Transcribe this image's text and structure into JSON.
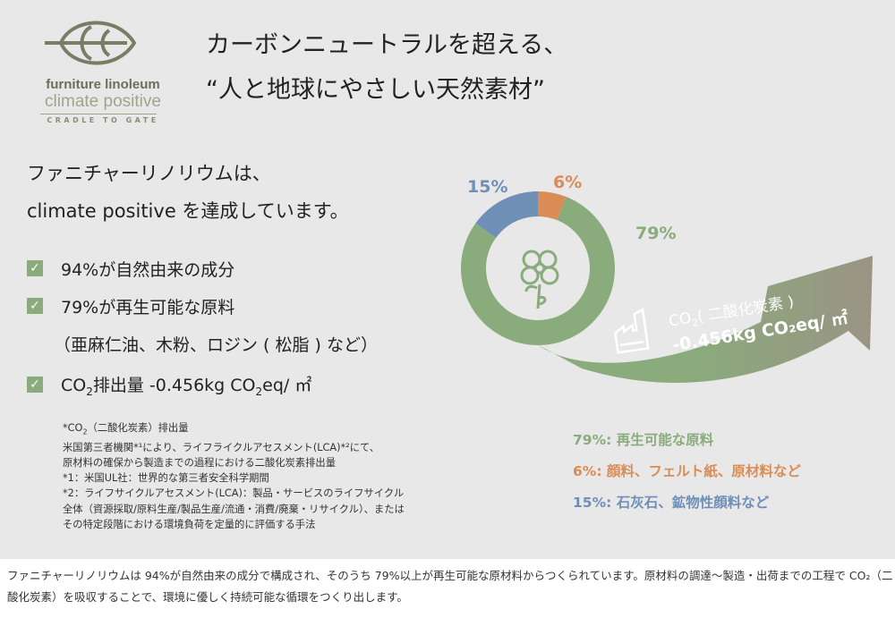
{
  "logo": {
    "name": "furniture linoleum",
    "sub": "climate positive",
    "tag": "CRADLE TO GATE",
    "color": "#7c7c66"
  },
  "headline": {
    "line1": "カーボンニュートラルを超える、",
    "line2": "“人と地球にやさしい天然素材”"
  },
  "lead": {
    "line1": "ファニチャーリノリウムは、",
    "line2": "climate positive を達成しています。"
  },
  "checklist": [
    {
      "text": "94%が自然由来の成分"
    },
    {
      "text": "79%が再生可能な原料",
      "sub": "（亜麻仁油、木粉、ロジン ( 松脂 ) など）"
    },
    {
      "text_pre": "CO",
      "text_sub": "2",
      "text_post": "排出量 -0.456kg CO",
      "text_sub2": "2",
      "text_post2": "eq/ ㎡"
    }
  ],
  "notes": {
    "l1_pre": "*CO",
    "l1_sub": "2",
    "l1_post": "（二酸化炭素）排出量",
    "l2": "米国第三者機関*¹により、ライフライクルアセスメント(LCA)*²にて、",
    "l3": "原材料の確保から製造までの過程における二酸化炭素排出量",
    "l4": "*1：米国UL社：世界的な第三者安全科学期間",
    "l5": "*2：ライフサイクルアセスメント(LCA)：製品・サービスのライフサイクル",
    "l6": "全体（資源採取/原料生産/製品生産/流通・消費/廃棄・リサイクル）、または",
    "l7": "その特定段階における環境負荷を定量的に評価する手法"
  },
  "chart_data": {
    "type": "pie",
    "donut": true,
    "slices": [
      {
        "label": "6%",
        "value": 6,
        "color": "#d98c55",
        "desc": "6%: 顔料、フェルト紙、原材料など"
      },
      {
        "label": "79%",
        "value": 79,
        "color": "#8aab7c",
        "desc": "79%: 再生可能な原料"
      },
      {
        "label": "15%",
        "value": 15,
        "color": "#6f8fb7",
        "desc": "15%: 石灰石、鉱物性顔料など"
      }
    ]
  },
  "arrow": {
    "line1_pre": "CO",
    "line1_sub": "2",
    "line1_post": "( 二酸化炭素 )",
    "line2": "-0.456kg CO₂eq/ ㎡"
  },
  "icons": {
    "center": "flower-icon",
    "arrow": "factory-icon",
    "check": "checkmark-icon"
  },
  "footer": "ファニチャーリノリウムは 94%が自然由来の成分で構成され、そのうち 79%以上が再生可能な原材料からつくられています。原材料の調達～製造・出荷までの工程で CO₂（二酸化炭素）を吸収することで、環境に優しく持続可能な循環をつくり出します。"
}
